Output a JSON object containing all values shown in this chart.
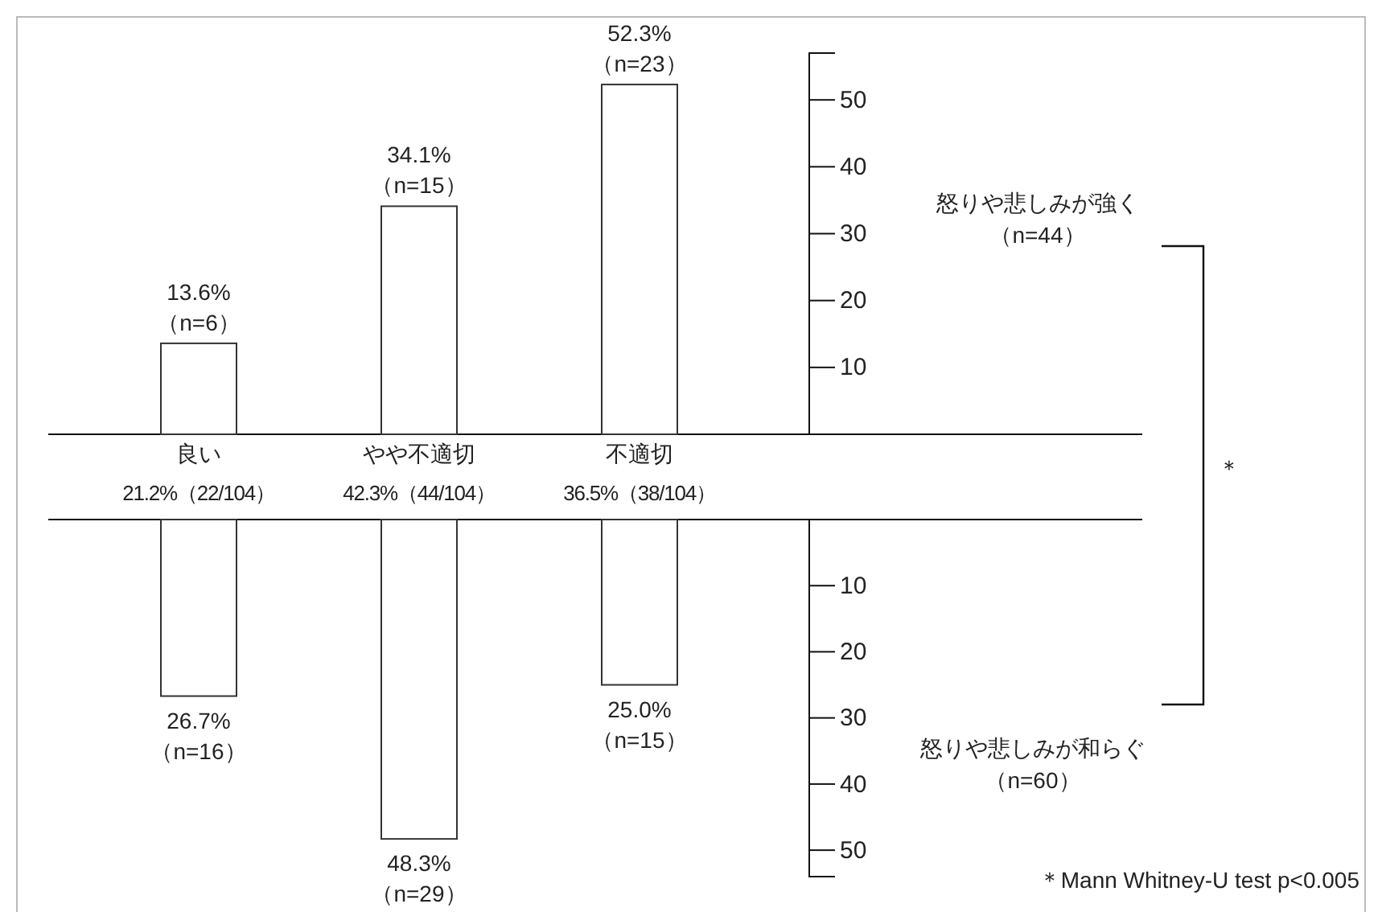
{
  "chart_data": [
    {
      "type": "bar",
      "categories": [
        "良い",
        "やや不適切",
        "不適切"
      ],
      "values": [
        13.6,
        34.1,
        52.3
      ],
      "color": "#ffffff",
      "value_labels": [
        "13.6%\n（n=6）",
        "34.1%\n（n=15）",
        "52.3%\n（n=23）"
      ],
      "ylim": [
        0,
        57
      ],
      "yticks": [
        10,
        20,
        30,
        40,
        50
      ],
      "annotations": [
        "21.2%（22/104）",
        "42.3%（44/104）",
        "36.5%（38/104）",
        "怒りや悲しみが強く（n=44）",
        "＊"
      ]
    },
    {
      "type": "bar",
      "categories": [
        null,
        null,
        null
      ],
      "values": [
        26.7,
        48.3,
        25.0
      ],
      "color": "#ffffff",
      "value_labels": [
        "26.7%\n（n=16）",
        "48.3%\n（n=29）",
        "25.0%\n（n=15）"
      ],
      "ylim": [
        54,
        0
      ],
      "yticks": [
        10,
        20,
        30,
        40,
        50
      ],
      "tick_labels": "y",
      "annotations": [
        "怒りや悲しみが和らぐ（n=60）",
        "＊Mann Whitney-U test p<0.005"
      ]
    }
  ]
}
